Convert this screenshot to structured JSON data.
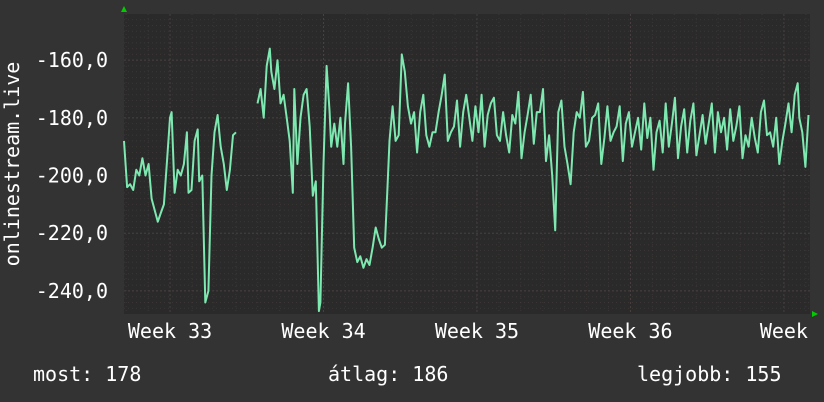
{
  "colors": {
    "background": "#333333",
    "plot_background": "#2a2a2a",
    "grid": "#4a4040",
    "line": "#7de8b0",
    "axis_arrow": "#00cc00",
    "text": "#ffffff"
  },
  "stats": {
    "current": "most: 178",
    "average": "átlag: 186",
    "best": "legjobb: 155"
  },
  "chart_data": {
    "type": "line",
    "ylabel": "onlinestream.live",
    "xlabel": "",
    "y_tick_labels": [
      "-160,0",
      "-180,0",
      "-200,0",
      "-220,0",
      "-240,0"
    ],
    "y_ticks": [
      -160,
      -180,
      -200,
      -220,
      -240
    ],
    "x_tick_labels": [
      "Week 33",
      "Week 34",
      "Week 35",
      "Week 36",
      "Week"
    ],
    "x_ticks": [
      33,
      34,
      35,
      36,
      37
    ],
    "xlim": [
      32.7,
      37.17
    ],
    "ylim": [
      -248,
      -144
    ],
    "grid": true,
    "series": [
      {
        "values": [
          [
            32.7,
            -188
          ],
          [
            32.72,
            -204
          ],
          [
            32.74,
            -203
          ],
          [
            32.76,
            -205
          ],
          [
            32.78,
            -198
          ],
          [
            32.8,
            -200
          ],
          [
            32.82,
            -194
          ],
          [
            32.84,
            -200
          ],
          [
            32.86,
            -196
          ],
          [
            32.88,
            -208
          ],
          [
            32.9,
            -212
          ],
          [
            32.92,
            -216
          ],
          [
            32.94,
            -213
          ],
          [
            32.96,
            -210
          ],
          [
            32.98,
            -195
          ],
          [
            33.0,
            -180
          ],
          [
            33.01,
            -178
          ],
          [
            33.03,
            -206
          ],
          [
            33.05,
            -198
          ],
          [
            33.07,
            -200
          ],
          [
            33.09,
            -196
          ],
          [
            33.11,
            -185
          ],
          [
            33.12,
            -206
          ],
          [
            33.14,
            -205
          ],
          [
            33.16,
            -188
          ],
          [
            33.18,
            -184
          ],
          [
            33.19,
            -202
          ],
          [
            33.21,
            -200
          ],
          [
            33.23,
            -244
          ],
          [
            33.25,
            -240
          ],
          [
            33.27,
            -200
          ],
          [
            33.29,
            -185
          ],
          [
            33.31,
            -179
          ],
          [
            33.33,
            -190
          ],
          [
            33.35,
            -196
          ],
          [
            33.37,
            -205
          ],
          [
            33.39,
            -198
          ],
          [
            33.41,
            -186
          ],
          [
            33.43,
            -185
          ],
          [
            33.57,
            -175
          ],
          [
            33.59,
            -170
          ],
          [
            33.61,
            -180
          ],
          [
            33.63,
            -162
          ],
          [
            33.65,
            -156
          ],
          [
            33.66,
            -164
          ],
          [
            33.68,
            -170
          ],
          [
            33.7,
            -160
          ],
          [
            33.72,
            -175
          ],
          [
            33.74,
            -172
          ],
          [
            33.76,
            -180
          ],
          [
            33.78,
            -188
          ],
          [
            33.8,
            -206
          ],
          [
            33.81,
            -170
          ],
          [
            33.83,
            -196
          ],
          [
            33.85,
            -180
          ],
          [
            33.87,
            -172
          ],
          [
            33.89,
            -170
          ],
          [
            33.91,
            -183
          ],
          [
            33.93,
            -207
          ],
          [
            33.95,
            -202
          ],
          [
            33.97,
            -247
          ],
          [
            33.98,
            -244
          ],
          [
            34.0,
            -196
          ],
          [
            34.02,
            -162
          ],
          [
            34.04,
            -178
          ],
          [
            34.05,
            -190
          ],
          [
            34.07,
            -182
          ],
          [
            34.09,
            -190
          ],
          [
            34.11,
            -180
          ],
          [
            34.13,
            -196
          ],
          [
            34.14,
            -182
          ],
          [
            34.16,
            -168
          ],
          [
            34.18,
            -190
          ],
          [
            34.2,
            -225
          ],
          [
            34.22,
            -230
          ],
          [
            34.24,
            -228
          ],
          [
            34.26,
            -232
          ],
          [
            34.28,
            -229
          ],
          [
            34.3,
            -231
          ],
          [
            34.32,
            -225
          ],
          [
            34.34,
            -218
          ],
          [
            34.36,
            -222
          ],
          [
            34.38,
            -225
          ],
          [
            34.4,
            -224
          ],
          [
            34.42,
            -200
          ],
          [
            34.43,
            -188
          ],
          [
            34.45,
            -176
          ],
          [
            34.47,
            -188
          ],
          [
            34.49,
            -186
          ],
          [
            34.51,
            -158
          ],
          [
            34.53,
            -164
          ],
          [
            34.55,
            -176
          ],
          [
            34.57,
            -182
          ],
          [
            34.59,
            -178
          ],
          [
            34.61,
            -192
          ],
          [
            34.63,
            -178
          ],
          [
            34.65,
            -172
          ],
          [
            34.67,
            -186
          ],
          [
            34.69,
            -190
          ],
          [
            34.71,
            -185
          ],
          [
            34.73,
            -185
          ],
          [
            34.75,
            -178
          ],
          [
            34.77,
            -172
          ],
          [
            34.79,
            -165
          ],
          [
            34.81,
            -188
          ],
          [
            34.83,
            -185
          ],
          [
            34.85,
            -183
          ],
          [
            34.87,
            -174
          ],
          [
            34.89,
            -190
          ],
          [
            34.91,
            -178
          ],
          [
            34.93,
            -172
          ],
          [
            34.95,
            -180
          ],
          [
            34.97,
            -188
          ],
          [
            34.99,
            -176
          ],
          [
            35.01,
            -185
          ],
          [
            35.03,
            -172
          ],
          [
            35.05,
            -190
          ],
          [
            35.07,
            -179
          ],
          [
            35.09,
            -175
          ],
          [
            35.11,
            -173
          ],
          [
            35.13,
            -186
          ],
          [
            35.15,
            -188
          ],
          [
            35.17,
            -178
          ],
          [
            35.19,
            -186
          ],
          [
            35.21,
            -192
          ],
          [
            35.23,
            -179
          ],
          [
            35.25,
            -182
          ],
          [
            35.27,
            -171
          ],
          [
            35.29,
            -194
          ],
          [
            35.31,
            -185
          ],
          [
            35.33,
            -179
          ],
          [
            35.35,
            -172
          ],
          [
            35.37,
            -189
          ],
          [
            35.39,
            -178
          ],
          [
            35.41,
            -178
          ],
          [
            35.43,
            -170
          ],
          [
            35.45,
            -195
          ],
          [
            35.47,
            -186
          ],
          [
            35.49,
            -200
          ],
          [
            35.51,
            -219
          ],
          [
            35.53,
            -178
          ],
          [
            35.55,
            -174
          ],
          [
            35.57,
            -190
          ],
          [
            35.59,
            -196
          ],
          [
            35.61,
            -203
          ],
          [
            35.63,
            -185
          ],
          [
            35.65,
            -178
          ],
          [
            35.67,
            -180
          ],
          [
            35.69,
            -171
          ],
          [
            35.71,
            -190
          ],
          [
            35.73,
            -188
          ],
          [
            35.75,
            -180
          ],
          [
            35.77,
            -179
          ],
          [
            35.79,
            -175
          ],
          [
            35.81,
            -196
          ],
          [
            35.83,
            -187
          ],
          [
            35.85,
            -176
          ],
          [
            35.87,
            -188
          ],
          [
            35.89,
            -185
          ],
          [
            35.91,
            -183
          ],
          [
            35.93,
            -176
          ],
          [
            35.95,
            -195
          ],
          [
            35.97,
            -182
          ],
          [
            35.99,
            -178
          ],
          [
            36.01,
            -190
          ],
          [
            36.03,
            -185
          ],
          [
            36.05,
            -180
          ],
          [
            36.07,
            -191
          ],
          [
            36.09,
            -175
          ],
          [
            36.11,
            -187
          ],
          [
            36.13,
            -180
          ],
          [
            36.15,
            -198
          ],
          [
            36.17,
            -185
          ],
          [
            36.19,
            -181
          ],
          [
            36.21,
            -192
          ],
          [
            36.23,
            -175
          ],
          [
            36.25,
            -190
          ],
          [
            36.27,
            -182
          ],
          [
            36.29,
            -173
          ],
          [
            36.31,
            -194
          ],
          [
            36.33,
            -183
          ],
          [
            36.35,
            -177
          ],
          [
            36.37,
            -192
          ],
          [
            36.39,
            -181
          ],
          [
            36.41,
            -175
          ],
          [
            36.43,
            -193
          ],
          [
            36.45,
            -186
          ],
          [
            36.47,
            -179
          ],
          [
            36.49,
            -189
          ],
          [
            36.51,
            -182
          ],
          [
            36.53,
            -175
          ],
          [
            36.55,
            -192
          ],
          [
            36.57,
            -178
          ],
          [
            36.59,
            -185
          ],
          [
            36.61,
            -180
          ],
          [
            36.63,
            -191
          ],
          [
            36.65,
            -177
          ],
          [
            36.67,
            -188
          ],
          [
            36.69,
            -183
          ],
          [
            36.71,
            -176
          ],
          [
            36.73,
            -194
          ],
          [
            36.75,
            -186
          ],
          [
            36.77,
            -190
          ],
          [
            36.79,
            -180
          ],
          [
            36.81,
            -187
          ],
          [
            36.83,
            -192
          ],
          [
            36.85,
            -178
          ],
          [
            36.87,
            -174
          ],
          [
            36.89,
            -186
          ],
          [
            36.91,
            -185
          ],
          [
            36.93,
            -190
          ],
          [
            36.95,
            -180
          ],
          [
            36.97,
            -196
          ],
          [
            36.99,
            -188
          ],
          [
            37.01,
            -182
          ],
          [
            37.03,
            -175
          ],
          [
            37.05,
            -185
          ],
          [
            37.07,
            -172
          ],
          [
            37.09,
            -168
          ],
          [
            37.1,
            -180
          ],
          [
            37.12,
            -185
          ],
          [
            37.14,
            -197
          ],
          [
            37.16,
            -179
          ]
        ]
      }
    ]
  }
}
